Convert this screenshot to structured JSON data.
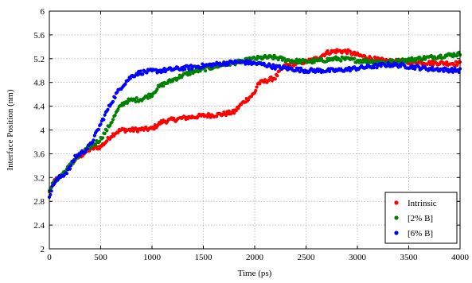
{
  "chart_data": {
    "type": "scatter",
    "title": "",
    "xlabel": "Time (ps)",
    "ylabel": "Interface Position (nm)",
    "xlim": [
      0,
      4000
    ],
    "ylim": [
      2,
      6
    ],
    "xticks": [
      0,
      500,
      1000,
      1500,
      2000,
      2500,
      3000,
      3500,
      4000
    ],
    "yticks": [
      2,
      2.4,
      2.8,
      3.2,
      3.6,
      4,
      4.4,
      4.8,
      5.2,
      5.6,
      6
    ],
    "grid": true,
    "legend_position": "bottom-right",
    "series": [
      {
        "name": "Intrinsic",
        "color": "#ff0000",
        "points": [
          [
            0,
            2.95
          ],
          [
            50,
            3.15
          ],
          [
            100,
            3.2
          ],
          [
            150,
            3.28
          ],
          [
            200,
            3.38
          ],
          [
            250,
            3.5
          ],
          [
            300,
            3.56
          ],
          [
            350,
            3.62
          ],
          [
            400,
            3.68
          ],
          [
            450,
            3.7
          ],
          [
            500,
            3.72
          ],
          [
            550,
            3.8
          ],
          [
            600,
            3.9
          ],
          [
            650,
            3.96
          ],
          [
            700,
            4.0
          ],
          [
            800,
            4.0
          ],
          [
            900,
            4.01
          ],
          [
            1000,
            4.02
          ],
          [
            1050,
            4.08
          ],
          [
            1100,
            4.14
          ],
          [
            1200,
            4.17
          ],
          [
            1300,
            4.2
          ],
          [
            1400,
            4.22
          ],
          [
            1500,
            4.24
          ],
          [
            1600,
            4.25
          ],
          [
            1700,
            4.27
          ],
          [
            1800,
            4.3
          ],
          [
            1850,
            4.4
          ],
          [
            1900,
            4.48
          ],
          [
            1950,
            4.55
          ],
          [
            2000,
            4.62
          ],
          [
            2030,
            4.78
          ],
          [
            2100,
            4.82
          ],
          [
            2200,
            4.88
          ],
          [
            2250,
            5.0
          ],
          [
            2300,
            5.08
          ],
          [
            2400,
            5.12
          ],
          [
            2500,
            5.15
          ],
          [
            2600,
            5.2
          ],
          [
            2700,
            5.3
          ],
          [
            2800,
            5.33
          ],
          [
            2900,
            5.32
          ],
          [
            3000,
            5.26
          ],
          [
            3100,
            5.22
          ],
          [
            3200,
            5.18
          ],
          [
            3300,
            5.16
          ],
          [
            3400,
            5.15
          ],
          [
            3500,
            5.14
          ],
          [
            3600,
            5.14
          ],
          [
            3700,
            5.13
          ],
          [
            3800,
            5.13
          ],
          [
            3900,
            5.12
          ],
          [
            4000,
            5.12
          ]
        ]
      },
      {
        "name": "[2% B]",
        "color": "#008000",
        "points": [
          [
            0,
            3.0
          ],
          [
            50,
            3.12
          ],
          [
            100,
            3.22
          ],
          [
            150,
            3.3
          ],
          [
            200,
            3.4
          ],
          [
            250,
            3.5
          ],
          [
            300,
            3.58
          ],
          [
            350,
            3.66
          ],
          [
            400,
            3.72
          ],
          [
            450,
            3.78
          ],
          [
            500,
            3.85
          ],
          [
            550,
            3.98
          ],
          [
            600,
            4.12
          ],
          [
            650,
            4.28
          ],
          [
            700,
            4.42
          ],
          [
            750,
            4.48
          ],
          [
            800,
            4.5
          ],
          [
            900,
            4.52
          ],
          [
            1000,
            4.6
          ],
          [
            1050,
            4.7
          ],
          [
            1100,
            4.76
          ],
          [
            1150,
            4.8
          ],
          [
            1200,
            4.84
          ],
          [
            1250,
            4.88
          ],
          [
            1300,
            4.92
          ],
          [
            1400,
            4.98
          ],
          [
            1500,
            5.02
          ],
          [
            1600,
            5.06
          ],
          [
            1700,
            5.1
          ],
          [
            1800,
            5.13
          ],
          [
            1900,
            5.16
          ],
          [
            2000,
            5.2
          ],
          [
            2100,
            5.22
          ],
          [
            2200,
            5.22
          ],
          [
            2300,
            5.18
          ],
          [
            2400,
            5.16
          ],
          [
            2500,
            5.15
          ],
          [
            2600,
            5.16
          ],
          [
            2700,
            5.18
          ],
          [
            2800,
            5.2
          ],
          [
            2900,
            5.19
          ],
          [
            3000,
            5.17
          ],
          [
            3100,
            5.16
          ],
          [
            3200,
            5.15
          ],
          [
            3300,
            5.14
          ],
          [
            3400,
            5.16
          ],
          [
            3500,
            5.18
          ],
          [
            3600,
            5.2
          ],
          [
            3700,
            5.22
          ],
          [
            3800,
            5.24
          ],
          [
            3900,
            5.26
          ],
          [
            4000,
            5.28
          ]
        ]
      },
      {
        "name": "[6% B]",
        "color": "#0000ff",
        "points": [
          [
            0,
            2.9
          ],
          [
            50,
            3.12
          ],
          [
            100,
            3.2
          ],
          [
            150,
            3.26
          ],
          [
            200,
            3.36
          ],
          [
            250,
            3.55
          ],
          [
            300,
            3.6
          ],
          [
            350,
            3.66
          ],
          [
            400,
            3.75
          ],
          [
            450,
            3.92
          ],
          [
            500,
            4.1
          ],
          [
            550,
            4.28
          ],
          [
            600,
            4.45
          ],
          [
            650,
            4.6
          ],
          [
            700,
            4.72
          ],
          [
            750,
            4.82
          ],
          [
            800,
            4.9
          ],
          [
            850,
            4.95
          ],
          [
            900,
            4.97
          ],
          [
            1000,
            4.99
          ],
          [
            1100,
            5.0
          ],
          [
            1200,
            5.02
          ],
          [
            1300,
            5.04
          ],
          [
            1400,
            5.06
          ],
          [
            1500,
            5.08
          ],
          [
            1600,
            5.1
          ],
          [
            1700,
            5.12
          ],
          [
            1800,
            5.14
          ],
          [
            1900,
            5.14
          ],
          [
            2000,
            5.12
          ],
          [
            2100,
            5.1
          ],
          [
            2200,
            5.06
          ],
          [
            2300,
            5.04
          ],
          [
            2400,
            5.02
          ],
          [
            2500,
            5.0
          ],
          [
            2600,
            5.0
          ],
          [
            2700,
            5.0
          ],
          [
            2800,
            5.0
          ],
          [
            2900,
            5.02
          ],
          [
            3000,
            5.04
          ],
          [
            3100,
            5.06
          ],
          [
            3200,
            5.08
          ],
          [
            3300,
            5.1
          ],
          [
            3400,
            5.09
          ],
          [
            3500,
            5.07
          ],
          [
            3600,
            5.05
          ],
          [
            3700,
            5.03
          ],
          [
            3800,
            5.02
          ],
          [
            3900,
            5.01
          ],
          [
            4000,
            5.0
          ]
        ]
      }
    ]
  }
}
